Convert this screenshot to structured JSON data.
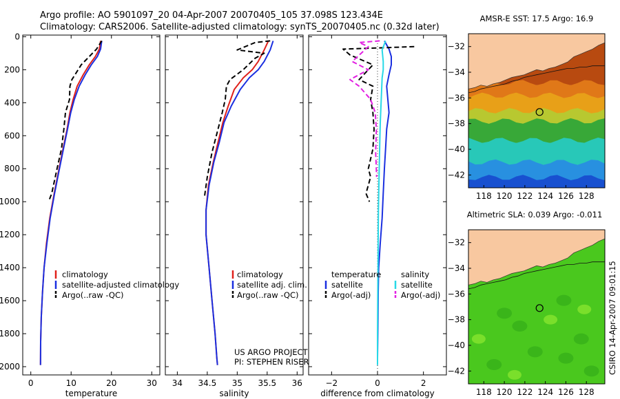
{
  "header": {
    "line1": "Argo profile: AO 5901097_20 04-Apr-2007 20070405_105 37.098S 123.434E",
    "line2": "Climatology: CARS2006. Satellite-adjusted climatology: synTS_20070405.nc (0.32d later)"
  },
  "credits": {
    "project": "US ARGO PROJECT",
    "pi": "PI: STEPHEN RISER",
    "stamp": "CSIRO 14-Apr-2007 09:01:15"
  },
  "colors": {
    "climatology": "#e0201a",
    "satellite": "#1a2fe0",
    "argo": "#000000",
    "satellite_salinity": "#27d8e6",
    "argo_adj_salinity": "#e21ee2",
    "land": "#f8c8a0"
  },
  "chart_data": [
    {
      "type": "line",
      "id": "temperature",
      "xlabel": "temperature",
      "xlim": [
        -2,
        32
      ],
      "ylim": [
        2050,
        -10
      ],
      "xticks": [
        0,
        10,
        20,
        30
      ],
      "yticks": [
        0,
        200,
        400,
        600,
        800,
        1000,
        1200,
        1400,
        1600,
        1800,
        2000
      ],
      "legend_position": "lower-right",
      "series": [
        {
          "name": "climatology",
          "color": "#e0201a",
          "dash": "solid",
          "x": [
            17.3,
            17.0,
            16.0,
            14.5,
            13.0,
            11.5,
            10.5,
            9.7,
            9.0,
            8.0,
            7.0,
            5.8,
            4.7,
            3.9,
            3.3,
            2.9,
            2.6,
            2.45,
            2.4
          ],
          "y": [
            25,
            75,
            120,
            170,
            230,
            300,
            380,
            460,
            560,
            680,
            800,
            950,
            1100,
            1250,
            1400,
            1550,
            1700,
            1850,
            1990
          ]
        },
        {
          "name": "satellite-adjusted climatology",
          "color": "#1a2fe0",
          "dash": "solid",
          "x": [
            17.6,
            17.3,
            16.5,
            15.0,
            13.5,
            12.0,
            10.8,
            9.9,
            9.1,
            8.1,
            7.1,
            5.9,
            4.8,
            4.0,
            3.3,
            2.9,
            2.6,
            2.45,
            2.4
          ],
          "y": [
            25,
            75,
            120,
            170,
            230,
            300,
            380,
            460,
            560,
            680,
            800,
            950,
            1100,
            1250,
            1400,
            1550,
            1700,
            1850,
            1990
          ]
        },
        {
          "name": "Argo(..raw -QC)",
          "color": "#000000",
          "dash": "dash",
          "x": [
            17.6,
            16.3,
            14.5,
            12.5,
            10.2,
            9.7,
            9.6,
            8.6,
            8.2,
            7.6,
            6.5,
            5.2,
            4.4
          ],
          "y": [
            25,
            75,
            120,
            170,
            260,
            300,
            380,
            460,
            560,
            680,
            800,
            950,
            1000
          ]
        }
      ]
    },
    {
      "type": "line",
      "id": "salinity",
      "xlabel": "salinity",
      "xlim": [
        33.8,
        36.1
      ],
      "ylim": [
        2050,
        -10
      ],
      "xticks": [
        34,
        34.5,
        35,
        35.5,
        36
      ],
      "yticks": [
        0,
        200,
        400,
        600,
        800,
        1000,
        1200,
        1400,
        1600,
        1800,
        2000
      ],
      "legend_position": "lower-right",
      "series": [
        {
          "name": "climatology",
          "color": "#e0201a",
          "dash": "solid",
          "x": [
            35.52,
            35.45,
            35.35,
            35.25,
            35.1,
            34.95,
            34.85,
            34.76,
            34.68,
            34.6,
            34.52,
            34.48,
            34.48,
            34.53,
            34.58,
            34.63,
            34.66,
            34.67
          ],
          "y": [
            25,
            80,
            150,
            200,
            250,
            320,
            420,
            520,
            640,
            760,
            900,
            1050,
            1200,
            1400,
            1600,
            1800,
            1950,
            1990
          ]
        },
        {
          "name": "satellite adj. clim.",
          "color": "#1a2fe0",
          "dash": "solid",
          "x": [
            35.6,
            35.55,
            35.45,
            35.35,
            35.2,
            35.05,
            34.9,
            34.78,
            34.7,
            34.61,
            34.53,
            34.48,
            34.48,
            34.53,
            34.58,
            34.63,
            34.66,
            34.67
          ],
          "y": [
            25,
            80,
            150,
            200,
            250,
            320,
            420,
            520,
            640,
            760,
            900,
            1050,
            1200,
            1400,
            1600,
            1800,
            1950,
            1990
          ]
        },
        {
          "name": "Argo(..raw -QC)",
          "color": "#000000",
          "dash": "dash",
          "x": [
            35.55,
            35.3,
            35.0,
            35.45,
            35.3,
            35.1,
            34.88,
            34.82,
            34.8,
            34.75,
            34.68,
            34.58,
            34.5,
            34.45
          ],
          "y": [
            25,
            35,
            80,
            100,
            130,
            200,
            260,
            300,
            380,
            460,
            560,
            700,
            850,
            980
          ]
        }
      ]
    },
    {
      "type": "line",
      "id": "difference",
      "xlabel": "difference from climatology",
      "xlim": [
        -3,
        3
      ],
      "ylim": [
        2050,
        -10
      ],
      "xticks": [
        -2,
        0,
        2
      ],
      "yticks": [
        0,
        200,
        400,
        600,
        800,
        1000,
        1200,
        1400,
        1600,
        1800,
        2000
      ],
      "legend_position": "lower-right",
      "legend_groups": [
        "temperature",
        "salinity"
      ],
      "series": [
        {
          "name": "satellite",
          "group": "temperature",
          "color": "#1a2fe0",
          "dash": "solid",
          "x": [
            0.3,
            0.5,
            0.6,
            0.6,
            0.5,
            0.4,
            0.45,
            0.5,
            0.4,
            0.35,
            0.3,
            0.25,
            0.2,
            0.12,
            0.05,
            0.03,
            0.02,
            0.01,
            0.0,
            0.0
          ],
          "y": [
            25,
            75,
            120,
            170,
            230,
            300,
            380,
            460,
            560,
            680,
            800,
            950,
            1100,
            1250,
            1400,
            1550,
            1700,
            1850,
            1950,
            1990
          ]
        },
        {
          "name": "Argo(-adj)",
          "group": "temperature",
          "color": "#000000",
          "dash": "dash",
          "x": [
            1.6,
            -1.5,
            -1.2,
            -0.2,
            -0.8,
            -0.2,
            -0.3,
            -0.2,
            -0.15,
            -0.2,
            -0.4,
            -0.3,
            -0.5,
            -0.35
          ],
          "y": [
            60,
            75,
            110,
            170,
            260,
            300,
            380,
            460,
            560,
            680,
            800,
            850,
            950,
            1000
          ]
        },
        {
          "name": "satellite",
          "group": "salinity",
          "color": "#27d8e6",
          "dash": "solid",
          "x": [
            0.35,
            0.2,
            0.25,
            0.25,
            0.2,
            0.18,
            0.15,
            0.12,
            0.1,
            0.08,
            0.06,
            0.04,
            0.03,
            0.02,
            0.01,
            0.0,
            0.0
          ],
          "y": [
            25,
            80,
            150,
            200,
            250,
            320,
            420,
            520,
            640,
            760,
            900,
            1050,
            1200,
            1400,
            1600,
            1800,
            1990
          ]
        },
        {
          "name": "Argo(-adj)",
          "group": "salinity",
          "color": "#e21ee2",
          "dash": "dash",
          "x": [
            0.1,
            -0.8,
            -0.4,
            -1.1,
            -0.4,
            -1.2,
            -0.8,
            -0.3,
            -0.1,
            -0.05,
            -0.08,
            -0.04
          ],
          "y": [
            25,
            35,
            60,
            150,
            200,
            260,
            300,
            380,
            460,
            560,
            700,
            850
          ]
        }
      ]
    },
    {
      "type": "heatmap",
      "id": "sst_map",
      "title": "AMSR-E SST: 17.5 Argo: 16.9",
      "xlim": [
        116.5,
        129.8
      ],
      "ylim": [
        -43,
        -31
      ],
      "xticks": [
        118,
        120,
        122,
        124,
        126,
        128
      ],
      "yticks": [
        -32,
        -34,
        -36,
        -38,
        -40,
        -42
      ],
      "float_position": {
        "lon": 123.434,
        "lat": -37.098
      },
      "color_bands": [
        {
          "lat_top": -31.0,
          "lat_bottom": -34.8,
          "color": "#b84a10"
        },
        {
          "lat_top": -34.8,
          "lat_bottom": -35.8,
          "color": "#e07818"
        },
        {
          "lat_top": -35.8,
          "lat_bottom": -37.0,
          "color": "#e8a018"
        },
        {
          "lat_top": -37.0,
          "lat_bottom": -37.8,
          "color": "#b8c830"
        },
        {
          "lat_top": -37.8,
          "lat_bottom": -39.3,
          "color": "#38a838"
        },
        {
          "lat_top": -39.3,
          "lat_bottom": -41.0,
          "color": "#28c8b8"
        },
        {
          "lat_top": -41.0,
          "lat_bottom": -42.2,
          "color": "#2890e0"
        },
        {
          "lat_top": -42.2,
          "lat_bottom": -43.0,
          "color": "#1850d0"
        }
      ]
    },
    {
      "type": "heatmap",
      "id": "sla_map",
      "title": "Altimetric SLA: 0.039 Argo: -0.011",
      "xlim": [
        116.5,
        129.8
      ],
      "ylim": [
        -43,
        -31
      ],
      "xticks": [
        118,
        120,
        122,
        124,
        126,
        128
      ],
      "yticks": [
        -32,
        -34,
        -36,
        -38,
        -40,
        -42
      ],
      "float_position": {
        "lon": 123.434,
        "lat": -37.098
      },
      "color_bands": [
        {
          "lat_top": -31.0,
          "lat_bottom": -43.0,
          "color": "#4ac81e"
        }
      ]
    }
  ]
}
